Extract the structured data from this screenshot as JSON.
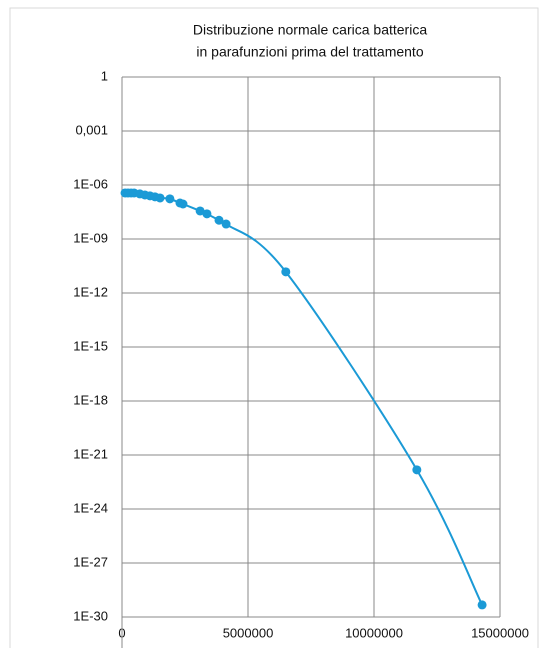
{
  "chart_data": {
    "type": "line",
    "title": [
      "Distribuzione normale carica batterica",
      "in parafunzioni prima del trattamento"
    ],
    "x": [
      120000,
      240000,
      360000,
      480000,
      710000,
      910000,
      1110000,
      1310000,
      1510000,
      1900000,
      2300000,
      2420000,
      3100000,
      3370000,
      3850000,
      4130000,
      6500000,
      11700000,
      14290000
    ],
    "values": [
      3.6e-07,
      3.6e-07,
      3.6e-07,
      3.6e-07,
      3.2e-07,
      2.8e-07,
      2.5e-07,
      2.2e-07,
      1.9e-07,
      1.7e-07,
      1e-07,
      8.8e-08,
      3.6e-08,
      2.5e-08,
      1.1e-08,
      6.8e-09,
      1.5e-11,
      1.5e-22,
      4.7e-30
    ],
    "color": "#1b9ad6",
    "xlim": [
      0,
      15000000
    ],
    "xticks": [
      0,
      5000000,
      10000000,
      15000000
    ],
    "ylim": [
      1e-30,
      1
    ],
    "ylog": true,
    "yticks": [
      1,
      {
        "value": 0.001,
        "label": "0,001"
      },
      {
        "value": 1e-06,
        "label": "1E-06"
      },
      {
        "value": 1e-09,
        "label": "1E-09"
      },
      {
        "value": 1e-12,
        "label": "1E-12"
      },
      {
        "value": 1e-15,
        "label": "1E-15"
      },
      {
        "value": 1e-18,
        "label": "1E-18"
      },
      {
        "value": 1e-21,
        "label": "1E-21"
      },
      {
        "value": 1e-24,
        "label": "1E-24"
      },
      {
        "value": 1e-27,
        "label": "1E-27"
      },
      {
        "value": 1e-30,
        "label": "1E-30"
      }
    ],
    "grid": true
  }
}
